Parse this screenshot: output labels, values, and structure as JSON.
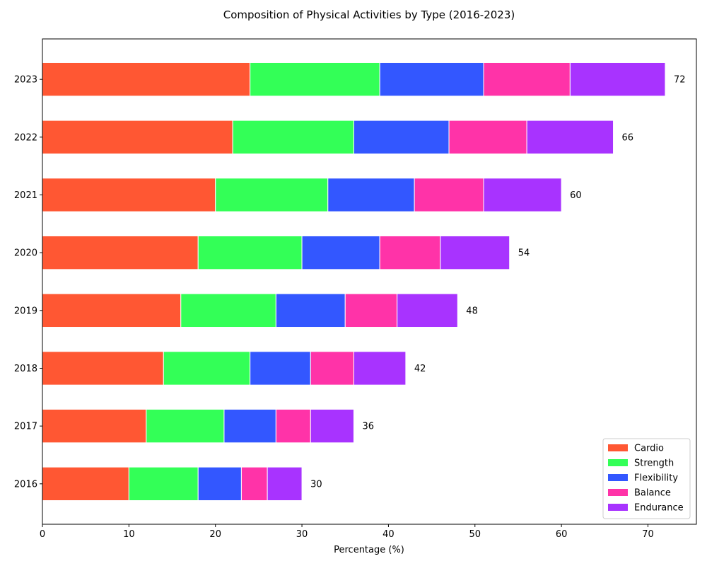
{
  "chart_data": {
    "type": "bar",
    "orientation": "horizontal",
    "stacked": true,
    "title": "Composition of Physical Activities by Type (2016-2023)",
    "xlabel": "Percentage (%)",
    "ylabel": "",
    "xlim": [
      0,
      75.6
    ],
    "xticks": [
      0,
      10,
      20,
      30,
      40,
      50,
      60,
      70
    ],
    "grid": false,
    "legend_position": "lower-right",
    "categories": [
      "2016",
      "2017",
      "2018",
      "2019",
      "2020",
      "2021",
      "2022",
      "2023"
    ],
    "series": [
      {
        "name": "Cardio",
        "color": "#FF5733",
        "values": [
          10,
          12,
          14,
          16,
          18,
          20,
          22,
          24
        ]
      },
      {
        "name": "Strength",
        "color": "#33FF57",
        "values": [
          8,
          9,
          10,
          11,
          12,
          13,
          14,
          15
        ]
      },
      {
        "name": "Flexibility",
        "color": "#3357FF",
        "values": [
          5,
          6,
          7,
          8,
          9,
          10,
          11,
          12
        ]
      },
      {
        "name": "Balance",
        "color": "#FF33A8",
        "values": [
          3,
          4,
          5,
          6,
          7,
          8,
          9,
          10
        ]
      },
      {
        "name": "Endurance",
        "color": "#A833FF",
        "values": [
          4,
          5,
          6,
          7,
          8,
          9,
          10,
          11
        ]
      }
    ],
    "totals": [
      "30",
      "36",
      "42",
      "48",
      "54",
      "60",
      "66",
      "72"
    ]
  }
}
